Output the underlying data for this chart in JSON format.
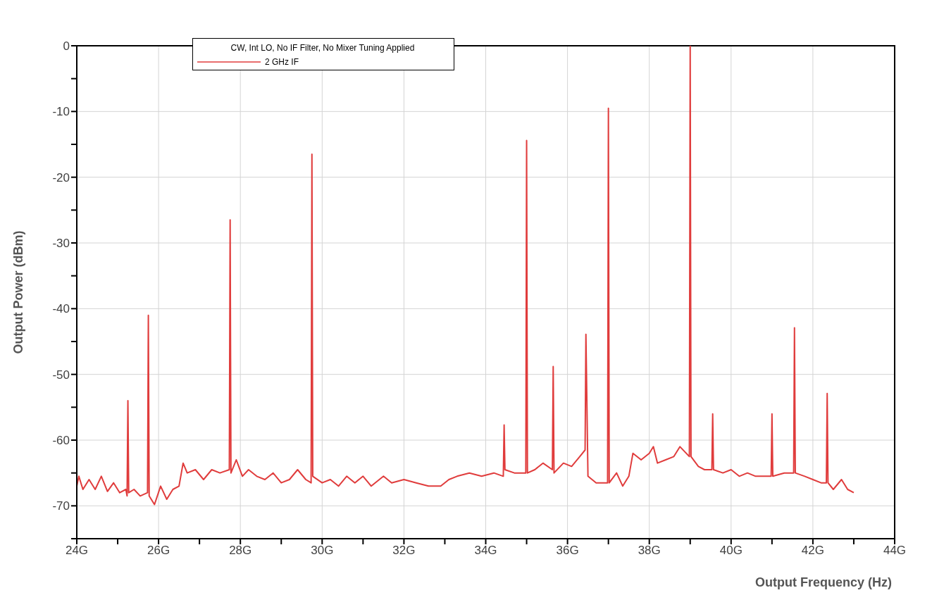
{
  "chart_data": {
    "type": "line",
    "xlabel": "Output Frequency (Hz)",
    "ylabel": "Output Power (dBm)",
    "legend_title": "CW, Int LO, No IF Filter, No Mixer Tuning Applied",
    "x": [
      24.0,
      24.05,
      24.15,
      24.3,
      24.45,
      24.6,
      24.75,
      24.9,
      25.05,
      25.2,
      25.23,
      25.25,
      25.27,
      25.4,
      25.55,
      25.73,
      25.75,
      25.77,
      25.9,
      26.05,
      26.2,
      26.35,
      26.5,
      26.6,
      26.7,
      26.9,
      27.1,
      27.3,
      27.5,
      27.73,
      27.75,
      27.77,
      27.9,
      28.05,
      28.2,
      28.4,
      28.6,
      28.8,
      29.0,
      29.2,
      29.4,
      29.6,
      29.73,
      29.75,
      29.77,
      30.0,
      30.2,
      30.4,
      30.6,
      30.8,
      31.0,
      31.2,
      31.5,
      31.7,
      32.0,
      32.3,
      32.6,
      32.9,
      33.1,
      33.3,
      33.6,
      33.9,
      34.2,
      34.43,
      34.45,
      34.47,
      34.7,
      34.98,
      35.0,
      35.02,
      35.2,
      35.4,
      35.63,
      35.65,
      35.67,
      35.9,
      36.1,
      36.3,
      36.43,
      36.45,
      36.5,
      36.7,
      36.98,
      37.0,
      37.02,
      37.2,
      37.35,
      37.5,
      37.6,
      37.8,
      38.0,
      38.1,
      38.2,
      38.4,
      38.6,
      38.75,
      38.98,
      39.0,
      39.02,
      39.2,
      39.35,
      39.53,
      39.55,
      39.57,
      39.8,
      40.0,
      40.2,
      40.4,
      40.6,
      40.8,
      40.98,
      41.0,
      41.02,
      41.3,
      41.53,
      41.55,
      41.57,
      41.8,
      42.0,
      42.2,
      42.33,
      42.35,
      42.37,
      42.5,
      42.7,
      42.85,
      43.0
    ],
    "series": [
      {
        "name": "2 GHz IF",
        "color": "#e03c3c",
        "values": [
          -67,
          -65.5,
          -67.5,
          -66,
          -67.5,
          -65.5,
          -67.8,
          -66.5,
          -68,
          -67.5,
          -68.5,
          -54,
          -68,
          -67.5,
          -68.5,
          -68,
          -41,
          -68.5,
          -69.8,
          -67,
          -69,
          -67.5,
          -67,
          -63.5,
          -65,
          -64.5,
          -66,
          -64.5,
          -65,
          -64.5,
          -26.5,
          -65,
          -63,
          -65.5,
          -64.5,
          -65.5,
          -66,
          -65,
          -66.5,
          -66,
          -64.5,
          -66,
          -66.5,
          -16.5,
          -65.5,
          -66.5,
          -66,
          -67,
          -65.5,
          -66.5,
          -65.5,
          -67,
          -65.5,
          -66.5,
          -66,
          -66.5,
          -67,
          -67,
          -66,
          -65.5,
          -65,
          -65.5,
          -65,
          -65.5,
          -57.7,
          -64.5,
          -65,
          -65,
          -14.4,
          -65,
          -64.5,
          -63.5,
          -64.5,
          -48.8,
          -65,
          -63.5,
          -64,
          -62.5,
          -61.5,
          -43.9,
          -65.5,
          -66.5,
          -66.5,
          -9.5,
          -66.5,
          -65,
          -67,
          -65.5,
          -62,
          -63,
          -62,
          -61,
          -63.5,
          -63,
          -62.5,
          -61,
          -62.5,
          0,
          -62.5,
          -64,
          -64.5,
          -64.5,
          -56,
          -64.5,
          -65,
          -64.5,
          -65.5,
          -65,
          -65.5,
          -65.5,
          -65.5,
          -56,
          -65.5,
          -65,
          -65,
          -42.9,
          -65,
          -65.5,
          -66,
          -66.5,
          -66.5,
          -52.9,
          -66.5,
          -67.5,
          -66,
          -67.5,
          -68
        ]
      }
    ],
    "xlim": [
      24,
      44
    ],
    "xticks": [
      {
        "value": 24,
        "label": "24G"
      },
      {
        "value": 25,
        "label": null
      },
      {
        "value": 26,
        "label": "26G"
      },
      {
        "value": 27,
        "label": null
      },
      {
        "value": 28,
        "label": "28G"
      },
      {
        "value": 29,
        "label": null
      },
      {
        "value": 30,
        "label": "30G"
      },
      {
        "value": 31,
        "label": null
      },
      {
        "value": 32,
        "label": "32G"
      },
      {
        "value": 33,
        "label": null
      },
      {
        "value": 34,
        "label": "34G"
      },
      {
        "value": 35,
        "label": null
      },
      {
        "value": 36,
        "label": "36G"
      },
      {
        "value": 37,
        "label": null
      },
      {
        "value": 38,
        "label": "38G"
      },
      {
        "value": 39,
        "label": null
      },
      {
        "value": 40,
        "label": "40G"
      },
      {
        "value": 41,
        "label": null
      },
      {
        "value": 42,
        "label": "42G"
      },
      {
        "value": 43,
        "label": null
      },
      {
        "value": 44,
        "label": "44G"
      }
    ],
    "ylim": [
      -75,
      0
    ],
    "yticks": [
      {
        "value": -75,
        "label": null
      },
      -70,
      {
        "value": -65,
        "label": null
      },
      -60,
      {
        "value": -55,
        "label": null
      },
      -50,
      {
        "value": -45,
        "label": null
      },
      -40,
      {
        "value": -35,
        "label": null
      },
      -30,
      {
        "value": -25,
        "label": null
      },
      -20,
      {
        "value": -15,
        "label": null
      },
      -10,
      {
        "value": -5,
        "label": null
      },
      0
    ],
    "grid": true,
    "legend": "top left",
    "marker": "none",
    "line_style": "solid"
  }
}
